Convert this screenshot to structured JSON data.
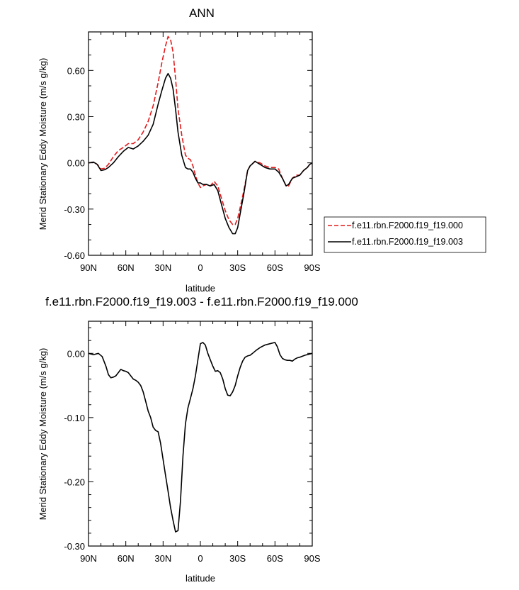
{
  "chart_data": [
    {
      "type": "line",
      "title": "ANN",
      "xlabel": "latitude",
      "ylabel": "Merid Stationary Eddy Moisture (m/s g/kg)",
      "xlim": [
        90,
        -90
      ],
      "ylim": [
        -0.6,
        0.85
      ],
      "x_ticks": [
        {
          "value": 90,
          "label": "90N"
        },
        {
          "value": 60,
          "label": "60N"
        },
        {
          "value": 30,
          "label": "30N"
        },
        {
          "value": 0,
          "label": "0"
        },
        {
          "value": -30,
          "label": "30S"
        },
        {
          "value": -60,
          "label": "60S"
        },
        {
          "value": -90,
          "label": "90S"
        }
      ],
      "y_ticks": [
        {
          "value": 0.6,
          "label": "0.60"
        },
        {
          "value": 0.3,
          "label": "0.30"
        },
        {
          "value": 0.0,
          "label": "0.00"
        },
        {
          "value": -0.3,
          "label": "-0.30"
        },
        {
          "value": -0.6,
          "label": "-0.60"
        }
      ],
      "legend_position": "right",
      "series": [
        {
          "name": "f.e11.rbn.F2000.f19_f19.000",
          "color": "#e31a1c",
          "dash": "dashed",
          "x": [
            90,
            86,
            83,
            80,
            77,
            74,
            70,
            66,
            62,
            58,
            54,
            50,
            46,
            42,
            38,
            34,
            31,
            28,
            26,
            24,
            22,
            20,
            18,
            15,
            12,
            10,
            8,
            6,
            4,
            2,
            0,
            -2,
            -5,
            -8,
            -11,
            -14,
            -17,
            -20,
            -23,
            -26,
            -28,
            -30,
            -32,
            -35,
            -38,
            -40,
            -44,
            -48,
            -52,
            -56,
            -60,
            -63,
            -66,
            -69,
            -71,
            -74,
            -77,
            -80,
            -83,
            -86,
            -88,
            -90
          ],
          "y": [
            0.0,
            0.005,
            -0.01,
            -0.04,
            -0.035,
            -0.01,
            0.04,
            0.08,
            0.1,
            0.125,
            0.125,
            0.15,
            0.2,
            0.27,
            0.37,
            0.52,
            0.65,
            0.76,
            0.82,
            0.8,
            0.72,
            0.55,
            0.35,
            0.18,
            0.05,
            0.03,
            0.02,
            -0.02,
            -0.08,
            -0.13,
            -0.16,
            -0.15,
            -0.14,
            -0.15,
            -0.12,
            -0.15,
            -0.23,
            -0.31,
            -0.37,
            -0.4,
            -0.4,
            -0.36,
            -0.29,
            -0.18,
            -0.05,
            -0.02,
            0.01,
            0.0,
            -0.02,
            -0.03,
            -0.03,
            -0.04,
            -0.1,
            -0.15,
            -0.15,
            -0.1,
            -0.08,
            -0.08,
            -0.05,
            -0.03,
            -0.01,
            0.0
          ]
        },
        {
          "name": "f.e11.rbn.F2000.f19_f19.003",
          "color": "#000000",
          "dash": "solid",
          "x": [
            90,
            86,
            83,
            80,
            77,
            74,
            70,
            66,
            62,
            58,
            54,
            50,
            46,
            42,
            38,
            34,
            31,
            28,
            26,
            24,
            22,
            20,
            18,
            15,
            12,
            10,
            8,
            6,
            4,
            2,
            0,
            -2,
            -5,
            -8,
            -11,
            -14,
            -17,
            -20,
            -23,
            -26,
            -28,
            -30,
            -32,
            -35,
            -38,
            -40,
            -44,
            -48,
            -52,
            -56,
            -60,
            -63,
            -66,
            -69,
            -71,
            -74,
            -77,
            -80,
            -83,
            -86,
            -88,
            -90
          ],
          "y": [
            0.0,
            0.005,
            -0.01,
            -0.05,
            -0.045,
            -0.03,
            0.0,
            0.04,
            0.075,
            0.1,
            0.09,
            0.11,
            0.14,
            0.18,
            0.25,
            0.38,
            0.47,
            0.55,
            0.58,
            0.55,
            0.48,
            0.35,
            0.2,
            0.05,
            -0.03,
            -0.04,
            -0.04,
            -0.06,
            -0.1,
            -0.13,
            -0.13,
            -0.14,
            -0.14,
            -0.15,
            -0.14,
            -0.18,
            -0.27,
            -0.36,
            -0.42,
            -0.46,
            -0.46,
            -0.42,
            -0.33,
            -0.2,
            -0.05,
            -0.02,
            0.01,
            -0.01,
            -0.03,
            -0.04,
            -0.04,
            -0.06,
            -0.1,
            -0.15,
            -0.14,
            -0.1,
            -0.09,
            -0.08,
            -0.05,
            -0.03,
            -0.01,
            0.0
          ]
        }
      ]
    },
    {
      "type": "line",
      "title": "f.e11.rbn.F2000.f19_f19.003 - f.e11.rbn.F2000.f19_f19.000",
      "xlabel": "latitude",
      "ylabel": "Merid Stationary Eddy Moisture (m/s g/kg)",
      "xlim": [
        90,
        -90
      ],
      "ylim": [
        -0.3,
        0.05
      ],
      "x_ticks": [
        {
          "value": 90,
          "label": "90N"
        },
        {
          "value": 60,
          "label": "60N"
        },
        {
          "value": 30,
          "label": "30N"
        },
        {
          "value": 0,
          "label": "0"
        },
        {
          "value": -30,
          "label": "30S"
        },
        {
          "value": -60,
          "label": "60S"
        },
        {
          "value": -90,
          "label": "90S"
        }
      ],
      "y_ticks": [
        {
          "value": 0.0,
          "label": "0.00"
        },
        {
          "value": -0.1,
          "label": "-0.10"
        },
        {
          "value": -0.2,
          "label": "-0.20"
        },
        {
          "value": -0.3,
          "label": "-0.30"
        }
      ],
      "series": [
        {
          "color": "#000000",
          "dash": "solid",
          "x": [
            90,
            86,
            82,
            79,
            76,
            74,
            72,
            70,
            68,
            66,
            64,
            62,
            60,
            58,
            56,
            54,
            52,
            50,
            48,
            46,
            44,
            42,
            40,
            38,
            36,
            34,
            32,
            30,
            28,
            26,
            24,
            22,
            20,
            18,
            16,
            14,
            12,
            10,
            8,
            6,
            4,
            2,
            0,
            -2,
            -4,
            -6,
            -8,
            -10,
            -12,
            -14,
            -16,
            -18,
            -20,
            -22,
            -24,
            -26,
            -28,
            -30,
            -32,
            -34,
            -36,
            -38,
            -40,
            -42,
            -45,
            -48,
            -52,
            -56,
            -60,
            -62,
            -64,
            -66,
            -68,
            -70,
            -72,
            -74,
            -76,
            -78,
            -80,
            -84,
            -88,
            -90
          ],
          "y": [
            0.0,
            -0.002,
            0.0,
            -0.005,
            -0.02,
            -0.033,
            -0.038,
            -0.037,
            -0.035,
            -0.03,
            -0.025,
            -0.027,
            -0.028,
            -0.03,
            -0.035,
            -0.04,
            -0.042,
            -0.045,
            -0.05,
            -0.06,
            -0.075,
            -0.09,
            -0.1,
            -0.115,
            -0.12,
            -0.122,
            -0.14,
            -0.165,
            -0.19,
            -0.215,
            -0.24,
            -0.26,
            -0.278,
            -0.276,
            -0.23,
            -0.16,
            -0.11,
            -0.085,
            -0.07,
            -0.055,
            -0.035,
            -0.01,
            0.015,
            0.017,
            0.013,
            0.0,
            -0.01,
            -0.02,
            -0.028,
            -0.027,
            -0.03,
            -0.04,
            -0.055,
            -0.065,
            -0.066,
            -0.06,
            -0.05,
            -0.035,
            -0.022,
            -0.012,
            -0.006,
            -0.004,
            -0.003,
            0.0,
            0.005,
            0.009,
            0.013,
            0.015,
            0.017,
            0.01,
            -0.002,
            -0.008,
            -0.01,
            -0.011,
            -0.011,
            -0.012,
            -0.009,
            -0.007,
            -0.006,
            -0.003,
            -0.001,
            0.0
          ]
        }
      ]
    }
  ]
}
